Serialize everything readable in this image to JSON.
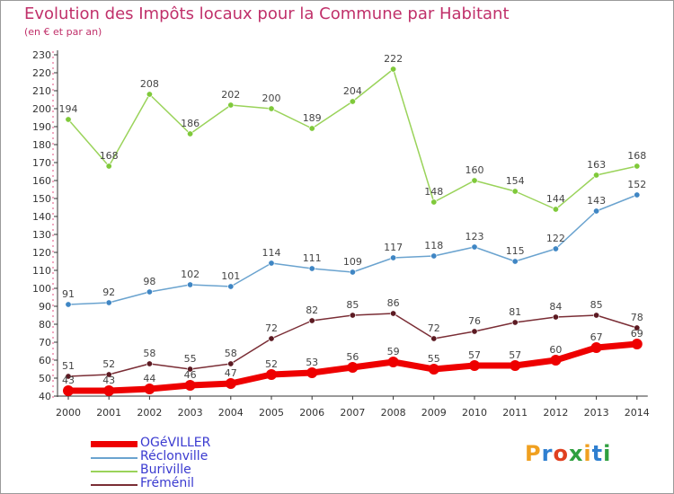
{
  "title": "Evolution des Impôts locaux pour la Commune par Habitant",
  "subtitle": "(en € et par an)",
  "chart_data": {
    "type": "line",
    "x": [
      2000,
      2001,
      2002,
      2003,
      2004,
      2005,
      2006,
      2007,
      2008,
      2009,
      2010,
      2011,
      2012,
      2013,
      2014
    ],
    "ylim": [
      40,
      230
    ],
    "yticks": [
      40,
      50,
      60,
      70,
      80,
      90,
      100,
      110,
      120,
      130,
      140,
      150,
      160,
      170,
      180,
      190,
      200,
      210,
      220,
      230
    ],
    "grid": false,
    "legend": "bottom-left",
    "series": [
      {
        "name": "Buriville",
        "color": "#9ad35a",
        "marker": "#7fc93a",
        "values": [
          194,
          168,
          208,
          186,
          202,
          200,
          189,
          204,
          222,
          148,
          160,
          154,
          144,
          163,
          168
        ]
      },
      {
        "name": "Réclonville",
        "color": "#6aa3cf",
        "marker": "#3f86c4",
        "values": [
          91,
          92,
          98,
          102,
          101,
          114,
          111,
          109,
          117,
          118,
          123,
          115,
          122,
          143,
          152
        ]
      },
      {
        "name": "Fréménil",
        "color": "#7a2d35",
        "marker": "#5c1a22",
        "values": [
          51,
          52,
          58,
          55,
          58,
          72,
          82,
          85,
          86,
          72,
          76,
          81,
          84,
          85,
          78
        ]
      },
      {
        "name": "OGéVILLER",
        "color": "#ee0000",
        "marker": "#ee0000",
        "values": [
          43,
          43,
          44,
          46,
          47,
          52,
          53,
          56,
          59,
          55,
          57,
          57,
          60,
          67,
          69
        ]
      }
    ]
  },
  "legend": [
    {
      "label": "OGéVILLER",
      "color": "#ee0000",
      "text_color": "#3a3ad0"
    },
    {
      "label": "Réclonville",
      "color": "#6aa3cf",
      "text_color": "#3a3ad0"
    },
    {
      "label": "Buriville",
      "color": "#9ad35a",
      "text_color": "#3a3ad0"
    },
    {
      "label": "Fréménil",
      "color": "#7a2d35",
      "text_color": "#3a3ad0"
    }
  ],
  "logo": {
    "letters": [
      "P",
      "r",
      "o",
      "x",
      "i",
      "t",
      "i"
    ],
    "colors": [
      "#f0a020",
      "#2f7fd0",
      "#e04020",
      "#2fa040",
      "#f0a020",
      "#2f7fd0",
      "#2fa040"
    ]
  }
}
